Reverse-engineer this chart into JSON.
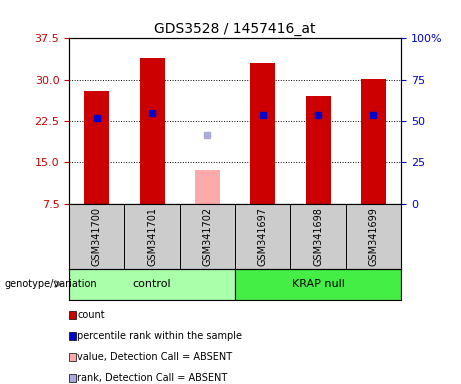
{
  "title": "GDS3528 / 1457416_at",
  "samples": [
    "GSM341700",
    "GSM341701",
    "GSM341702",
    "GSM341697",
    "GSM341698",
    "GSM341699"
  ],
  "groups": [
    "control",
    "control",
    "control",
    "KRAP null",
    "KRAP null",
    "KRAP null"
  ],
  "red_bars": [
    28.0,
    34.0,
    null,
    33.0,
    27.0,
    30.2
  ],
  "blue_markers": [
    23.0,
    24.0,
    null,
    23.5,
    23.5,
    23.5
  ],
  "pink_bars": [
    null,
    null,
    13.5,
    null,
    null,
    null
  ],
  "lavender_markers": [
    null,
    null,
    20.0,
    null,
    null,
    null
  ],
  "ylim_left": [
    7.5,
    37.5
  ],
  "ylim_right": [
    0,
    100
  ],
  "yticks_left": [
    7.5,
    15.0,
    22.5,
    30.0,
    37.5
  ],
  "yticks_right": [
    0,
    25,
    50,
    75,
    100
  ],
  "y_right_labels": [
    "0",
    "25",
    "50",
    "75",
    "100%"
  ],
  "grid_lines": [
    15.0,
    22.5,
    30.0
  ],
  "bar_width": 0.45,
  "red_color": "#cc0000",
  "blue_color": "#0000cc",
  "pink_color": "#ffaaaa",
  "lavender_color": "#aaaadd",
  "ctrl_color": "#aaffaa",
  "krap_color": "#44ee44",
  "sample_bg": "#cccccc",
  "plot_bg": "#ffffff",
  "left_tick_color": "#cc0000",
  "right_tick_color": "#0000cc",
  "legend_items": [
    {
      "label": "count",
      "color": "#cc0000"
    },
    {
      "label": "percentile rank within the sample",
      "color": "#0000cc"
    },
    {
      "label": "value, Detection Call = ABSENT",
      "color": "#ffaaaa"
    },
    {
      "label": "rank, Detection Call = ABSENT",
      "color": "#aaaadd"
    }
  ],
  "genotype_label": "genotype/variation"
}
